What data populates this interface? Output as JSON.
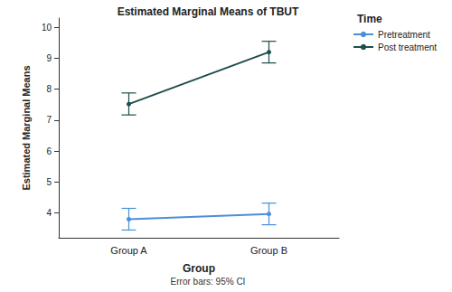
{
  "chart_data": {
    "type": "line",
    "title": "Estimated Marginal Means of TBUT",
    "x_label": "Group",
    "y_label": "Estimated Marginal Means",
    "legend_title": "Time",
    "note": "Error bars: 95% CI",
    "categories": [
      "Group A",
      "Group B"
    ],
    "series": [
      {
        "name": "Pretreatment",
        "color": "#4a90d9",
        "values": [
          3.8,
          3.97
        ],
        "error_low": [
          3.45,
          3.62
        ],
        "error_high": [
          4.15,
          4.32
        ]
      },
      {
        "name": "Post treatment",
        "color": "#1e4d4d",
        "values": [
          7.52,
          9.2
        ],
        "error_low": [
          7.17,
          8.85
        ],
        "error_high": [
          7.88,
          9.55
        ]
      }
    ],
    "ylim": [
      3.2,
      10.3
    ],
    "yticks": [
      4,
      5,
      6,
      7,
      8,
      9,
      10
    ],
    "grid": false,
    "legend": "right",
    "marker": "circle"
  }
}
